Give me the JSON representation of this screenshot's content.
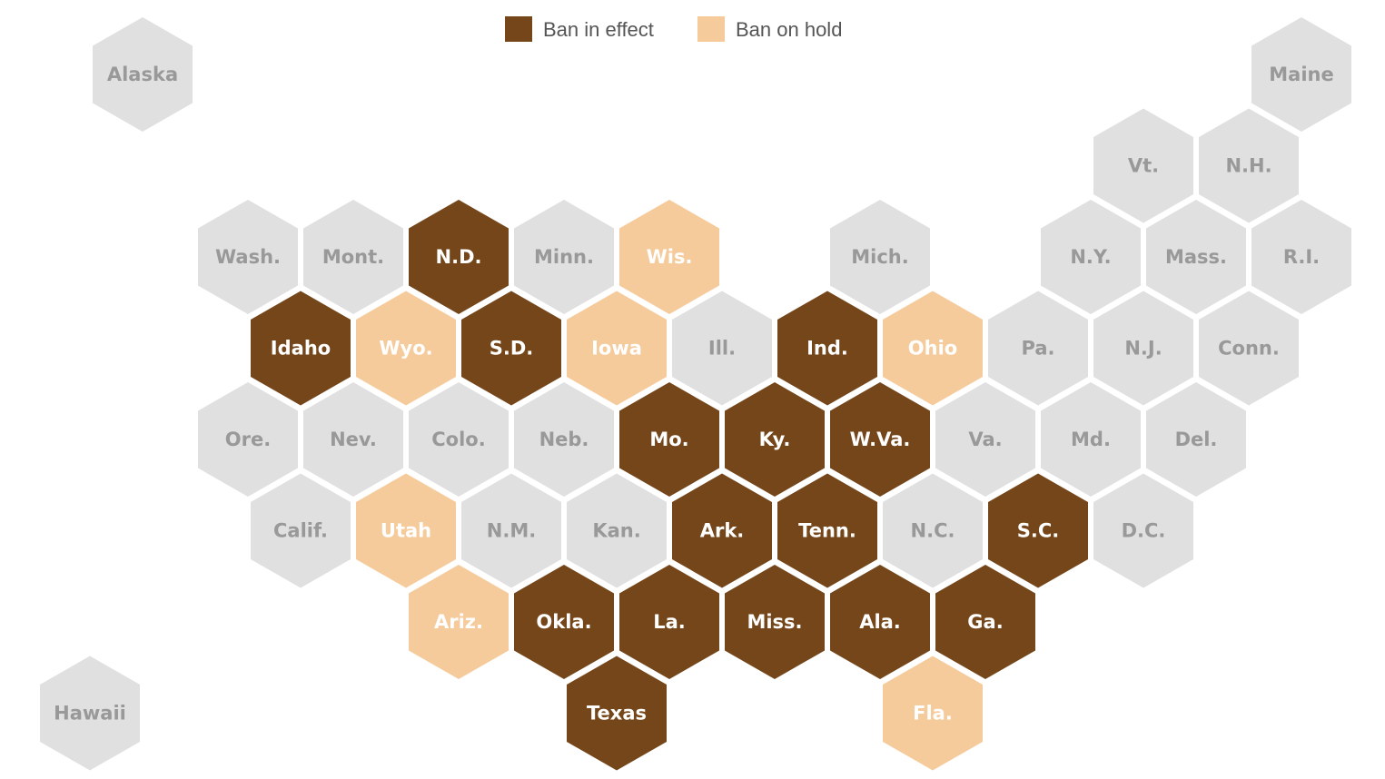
{
  "legend": [
    {
      "label": "Ban in effect",
      "color": "#74461a"
    },
    {
      "label": "Ban on hold",
      "color": "#f5cb9c"
    }
  ],
  "base_color": "#e0e0e0",
  "states": [
    {
      "label": "Alaska",
      "status": null
    },
    {
      "label": "Maine",
      "status": null
    },
    {
      "label": "Vt.",
      "status": null
    },
    {
      "label": "N.H.",
      "status": null
    },
    {
      "label": "Wash.",
      "status": null
    },
    {
      "label": "Mont.",
      "status": null
    },
    {
      "label": "N.D.",
      "status": 0
    },
    {
      "label": "Minn.",
      "status": null
    },
    {
      "label": "Wis.",
      "status": 1
    },
    {
      "label": "Mich.",
      "status": null
    },
    {
      "label": "N.Y.",
      "status": null
    },
    {
      "label": "Mass.",
      "status": null
    },
    {
      "label": "R.I.",
      "status": null
    },
    {
      "label": "Idaho",
      "status": 0
    },
    {
      "label": "Wyo.",
      "status": 1
    },
    {
      "label": "S.D.",
      "status": 0
    },
    {
      "label": "Iowa",
      "status": 1
    },
    {
      "label": "Ill.",
      "status": null
    },
    {
      "label": "Ind.",
      "status": 0
    },
    {
      "label": "Ohio",
      "status": 1
    },
    {
      "label": "Pa.",
      "status": null
    },
    {
      "label": "N.J.",
      "status": null
    },
    {
      "label": "Conn.",
      "status": null
    },
    {
      "label": "Ore.",
      "status": null
    },
    {
      "label": "Nev.",
      "status": null
    },
    {
      "label": "Colo.",
      "status": null
    },
    {
      "label": "Neb.",
      "status": null
    },
    {
      "label": "Mo.",
      "status": 0
    },
    {
      "label": "Ky.",
      "status": 0
    },
    {
      "label": "W.Va.",
      "status": 0
    },
    {
      "label": "Va.",
      "status": null
    },
    {
      "label": "Md.",
      "status": null
    },
    {
      "label": "Del.",
      "status": null
    },
    {
      "label": "Calif.",
      "status": null
    },
    {
      "label": "Utah",
      "status": 1
    },
    {
      "label": "N.M.",
      "status": null
    },
    {
      "label": "Kan.",
      "status": null
    },
    {
      "label": "Ark.",
      "status": 0
    },
    {
      "label": "Tenn.",
      "status": 0
    },
    {
      "label": "N.C.",
      "status": null
    },
    {
      "label": "S.C.",
      "status": 0
    },
    {
      "label": "D.C.",
      "status": null
    },
    {
      "label": "Ariz.",
      "status": 1
    },
    {
      "label": "Okla.",
      "status": 0
    },
    {
      "label": "La.",
      "status": 0
    },
    {
      "label": "Miss.",
      "status": 0
    },
    {
      "label": "Ala.",
      "status": 0
    },
    {
      "label": "Ga.",
      "status": 0
    },
    {
      "label": "Hawaii",
      "status": null
    },
    {
      "label": "Texas",
      "status": 0
    },
    {
      "label": "Fla.",
      "status": 1
    }
  ]
}
